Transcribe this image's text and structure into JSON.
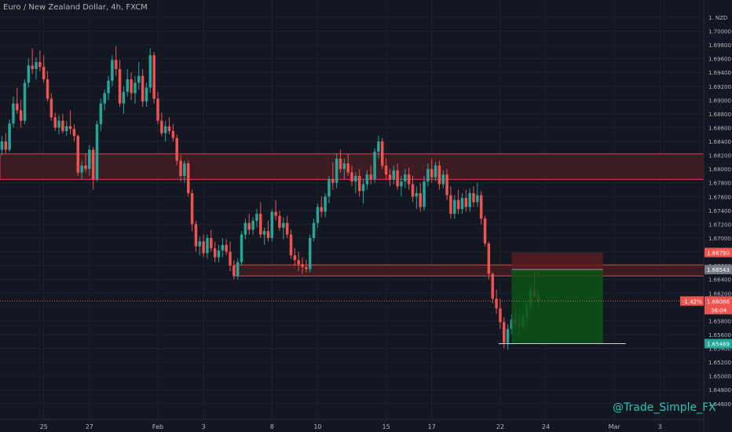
{
  "chart_title": "Euro / New Zealand Dollar, 4h, FXCM",
  "watermark": "@Trade_Simple_FX",
  "colors": {
    "background": "#131722",
    "grid": "#1e222d",
    "up": "#26a69a",
    "down": "#ef5350",
    "zone_fill": "#4a1f24",
    "zone_border": "#e0414b",
    "stop_zone": "#5a1c22",
    "target_zone": "#0d5418",
    "axis_text": "#b2b5be",
    "current_price": "#ef5350"
  },
  "chart_data": {
    "type": "candlestick",
    "title": "Euro / New Zealand Dollar, 4h, FXCM",
    "currency_label": "NZD",
    "ylim": [
      1.6437,
      1.7045
    ],
    "y_ticks": [
      "1.70200",
      "1.70000",
      "1.69800",
      "1.69600",
      "1.69400",
      "1.69200",
      "1.69000",
      "1.68800",
      "1.68600",
      "1.68400",
      "1.68200",
      "1.68000",
      "1.67800",
      "1.67600",
      "1.67400",
      "1.67200",
      "1.67000",
      "1.66800",
      "1.66600",
      "1.66400",
      "1.66200",
      "1.66000",
      "1.65800",
      "1.65600",
      "1.65400",
      "1.65200",
      "1.65000",
      "1.64800",
      "1.64600"
    ],
    "x_ticks": [
      {
        "label": "25",
        "i": 11
      },
      {
        "label": "27",
        "i": 23
      },
      {
        "label": "Feb",
        "i": 41
      },
      {
        "label": "3",
        "i": 53
      },
      {
        "label": "8",
        "i": 71
      },
      {
        "label": "10",
        "i": 83
      },
      {
        "label": "15",
        "i": 101
      },
      {
        "label": "17",
        "i": 113
      },
      {
        "label": "22",
        "i": 131
      },
      {
        "label": "24",
        "i": 143
      },
      {
        "label": "Mar",
        "i": 161
      },
      {
        "label": "3",
        "i": 173
      }
    ],
    "visible_candle_slots": 185,
    "resistance_zone": [
      1.6785,
      1.6822
    ],
    "support_zone": [
      1.6645,
      1.6661
    ],
    "trade": {
      "stop_top": 1.6679,
      "entry": 1.66543,
      "target": 1.65469,
      "start_i": 134,
      "end_i": 158
    },
    "price_labels": [
      {
        "text": "1.66790",
        "price": 1.6679,
        "color": "#ef5350"
      },
      {
        "text": "1.66543",
        "price": 1.66543,
        "color": "#787b86"
      },
      {
        "text": "1.65469",
        "price": 1.65469,
        "color": "#26a69a"
      }
    ],
    "current_price": {
      "price": 1.66086,
      "text": "1.66086",
      "change": "-1.42%",
      "timer": "38:04"
    },
    "candles": [
      [
        1.6828,
        1.6848,
        1.682,
        1.684
      ],
      [
        1.684,
        1.6852,
        1.6822,
        1.6828
      ],
      [
        1.6828,
        1.6872,
        1.6825,
        1.6866
      ],
      [
        1.6866,
        1.6905,
        1.686,
        1.6895
      ],
      [
        1.6895,
        1.6918,
        1.688,
        1.6885
      ],
      [
        1.6885,
        1.69,
        1.686,
        1.687
      ],
      [
        1.687,
        1.693,
        1.6865,
        1.6925
      ],
      [
        1.6925,
        1.696,
        1.6918,
        1.695
      ],
      [
        1.695,
        1.6975,
        1.6938,
        1.6945
      ],
      [
        1.6945,
        1.6962,
        1.693,
        1.6955
      ],
      [
        1.6955,
        1.6972,
        1.6942,
        1.6948
      ],
      [
        1.6948,
        1.6965,
        1.6925,
        1.693
      ],
      [
        1.693,
        1.6942,
        1.6898,
        1.6902
      ],
      [
        1.6902,
        1.691,
        1.687,
        1.6875
      ],
      [
        1.6875,
        1.6882,
        1.6855,
        1.686
      ],
      [
        1.686,
        1.6878,
        1.685,
        1.687
      ],
      [
        1.687,
        1.688,
        1.6852,
        1.6855
      ],
      [
        1.6855,
        1.687,
        1.6848,
        1.6862
      ],
      [
        1.6862,
        1.6885,
        1.685,
        1.6858
      ],
      [
        1.6858,
        1.6865,
        1.684,
        1.6848
      ],
      [
        1.6848,
        1.685,
        1.679,
        1.6795
      ],
      [
        1.6795,
        1.6812,
        1.6785,
        1.6805
      ],
      [
        1.6805,
        1.6822,
        1.6795,
        1.68
      ],
      [
        1.68,
        1.6835,
        1.679,
        1.6828
      ],
      [
        1.6828,
        1.6832,
        1.677,
        1.6785
      ],
      [
        1.6785,
        1.687,
        1.6782,
        1.6865
      ],
      [
        1.6865,
        1.6902,
        1.6855,
        1.6895
      ],
      [
        1.6895,
        1.6915,
        1.6885,
        1.691
      ],
      [
        1.691,
        1.6935,
        1.69,
        1.6928
      ],
      [
        1.6928,
        1.6965,
        1.692,
        1.6958
      ],
      [
        1.6958,
        1.6978,
        1.6935,
        1.6945
      ],
      [
        1.6945,
        1.6958,
        1.689,
        1.6895
      ],
      [
        1.6895,
        1.692,
        1.688,
        1.6912
      ],
      [
        1.6912,
        1.6945,
        1.6905,
        1.693
      ],
      [
        1.693,
        1.694,
        1.69,
        1.691
      ],
      [
        1.691,
        1.6935,
        1.6895,
        1.6925
      ],
      [
        1.6925,
        1.6955,
        1.6915,
        1.6935
      ],
      [
        1.6935,
        1.6945,
        1.689,
        1.6898
      ],
      [
        1.6898,
        1.6925,
        1.689,
        1.6918
      ],
      [
        1.6918,
        1.6975,
        1.691,
        1.6965
      ],
      [
        1.6965,
        1.697,
        1.6895,
        1.6902
      ],
      [
        1.6902,
        1.6912,
        1.6865,
        1.687
      ],
      [
        1.687,
        1.6882,
        1.6848,
        1.6852
      ],
      [
        1.6852,
        1.687,
        1.684,
        1.6862
      ],
      [
        1.6862,
        1.6875,
        1.685,
        1.6855
      ],
      [
        1.6855,
        1.6865,
        1.684,
        1.6845
      ],
      [
        1.6845,
        1.685,
        1.6805,
        1.6812
      ],
      [
        1.6812,
        1.682,
        1.6782,
        1.679
      ],
      [
        1.679,
        1.6812,
        1.678,
        1.6808
      ],
      [
        1.6808,
        1.6812,
        1.676,
        1.6765
      ],
      [
        1.6765,
        1.677,
        1.671,
        1.672
      ],
      [
        1.672,
        1.6725,
        1.668,
        1.6688
      ],
      [
        1.6688,
        1.6702,
        1.6675,
        1.6695
      ],
      [
        1.6695,
        1.6705,
        1.6672,
        1.6678
      ],
      [
        1.6678,
        1.6705,
        1.667,
        1.67
      ],
      [
        1.67,
        1.6712,
        1.668,
        1.6685
      ],
      [
        1.6685,
        1.6695,
        1.6665,
        1.6672
      ],
      [
        1.6672,
        1.669,
        1.6665,
        1.6682
      ],
      [
        1.6682,
        1.67,
        1.6672,
        1.669
      ],
      [
        1.669,
        1.6698,
        1.6675,
        1.668
      ],
      [
        1.668,
        1.6695,
        1.6652,
        1.666
      ],
      [
        1.666,
        1.6668,
        1.664,
        1.6645
      ],
      [
        1.6645,
        1.667,
        1.664,
        1.6665
      ],
      [
        1.6665,
        1.671,
        1.666,
        1.6705
      ],
      [
        1.6705,
        1.6728,
        1.6698,
        1.6722
      ],
      [
        1.6722,
        1.6735,
        1.6705,
        1.6712
      ],
      [
        1.6712,
        1.673,
        1.6705,
        1.6725
      ],
      [
        1.6725,
        1.6742,
        1.6715,
        1.6735
      ],
      [
        1.6735,
        1.6752,
        1.67,
        1.6705
      ],
      [
        1.6705,
        1.6715,
        1.669,
        1.671
      ],
      [
        1.671,
        1.6725,
        1.6695,
        1.67
      ],
      [
        1.67,
        1.6742,
        1.6695,
        1.6738
      ],
      [
        1.6738,
        1.6755,
        1.6725,
        1.6732
      ],
      [
        1.6732,
        1.674,
        1.671,
        1.6715
      ],
      [
        1.6715,
        1.673,
        1.6698,
        1.6722
      ],
      [
        1.6722,
        1.6732,
        1.67,
        1.6705
      ],
      [
        1.6705,
        1.6712,
        1.667,
        1.6675
      ],
      [
        1.6675,
        1.6685,
        1.666,
        1.6668
      ],
      [
        1.6668,
        1.668,
        1.6652,
        1.6662
      ],
      [
        1.6662,
        1.6672,
        1.6648,
        1.6658
      ],
      [
        1.6658,
        1.6668,
        1.665,
        1.6655
      ],
      [
        1.6655,
        1.6705,
        1.665,
        1.67
      ],
      [
        1.67,
        1.6728,
        1.6695,
        1.6722
      ],
      [
        1.6722,
        1.675,
        1.6715,
        1.6745
      ],
      [
        1.6745,
        1.676,
        1.673,
        1.6738
      ],
      [
        1.6738,
        1.6765,
        1.673,
        1.676
      ],
      [
        1.676,
        1.679,
        1.675,
        1.6785
      ],
      [
        1.6785,
        1.681,
        1.677,
        1.678
      ],
      [
        1.678,
        1.6822,
        1.6772,
        1.6815
      ],
      [
        1.6815,
        1.6828,
        1.6795,
        1.68
      ],
      [
        1.68,
        1.6815,
        1.6785,
        1.6808
      ],
      [
        1.6808,
        1.6822,
        1.679,
        1.6795
      ],
      [
        1.6795,
        1.6805,
        1.6775,
        1.6782
      ],
      [
        1.6782,
        1.6795,
        1.6765,
        1.679
      ],
      [
        1.679,
        1.68,
        1.676,
        1.6768
      ],
      [
        1.6768,
        1.6785,
        1.675,
        1.6778
      ],
      [
        1.6778,
        1.6798,
        1.677,
        1.6792
      ],
      [
        1.6792,
        1.6805,
        1.6778,
        1.6785
      ],
      [
        1.6785,
        1.683,
        1.678,
        1.6825
      ],
      [
        1.6825,
        1.6848,
        1.6815,
        1.684
      ],
      [
        1.684,
        1.6845,
        1.68,
        1.6805
      ],
      [
        1.6805,
        1.6815,
        1.6785,
        1.6792
      ],
      [
        1.6792,
        1.68,
        1.6775,
        1.6785
      ],
      [
        1.6785,
        1.6805,
        1.6778,
        1.6798
      ],
      [
        1.6798,
        1.6808,
        1.677,
        1.6775
      ],
      [
        1.6775,
        1.679,
        1.676,
        1.6782
      ],
      [
        1.6782,
        1.68,
        1.6772,
        1.6792
      ],
      [
        1.6792,
        1.6802,
        1.677,
        1.6778
      ],
      [
        1.6778,
        1.679,
        1.6752,
        1.676
      ],
      [
        1.676,
        1.6775,
        1.6742,
        1.6765
      ],
      [
        1.6765,
        1.678,
        1.6738,
        1.6745
      ],
      [
        1.6745,
        1.679,
        1.674,
        1.6782
      ],
      [
        1.6782,
        1.6808,
        1.6775,
        1.68
      ],
      [
        1.68,
        1.6815,
        1.678,
        1.6788
      ],
      [
        1.6788,
        1.681,
        1.6782,
        1.6805
      ],
      [
        1.6805,
        1.6812,
        1.677,
        1.6778
      ],
      [
        1.6778,
        1.6798,
        1.6772,
        1.6792
      ],
      [
        1.6792,
        1.68,
        1.6755,
        1.6762
      ],
      [
        1.6762,
        1.6775,
        1.6728,
        1.6735
      ],
      [
        1.6735,
        1.6762,
        1.6728,
        1.6755
      ],
      [
        1.6755,
        1.677,
        1.6735,
        1.6742
      ],
      [
        1.6742,
        1.6765,
        1.6735,
        1.6758
      ],
      [
        1.6758,
        1.677,
        1.6738,
        1.6745
      ],
      [
        1.6745,
        1.6772,
        1.6738,
        1.6765
      ],
      [
        1.6765,
        1.6775,
        1.6745,
        1.6752
      ],
      [
        1.6752,
        1.678,
        1.6745,
        1.6762
      ],
      [
        1.6762,
        1.6768,
        1.672,
        1.6728
      ],
      [
        1.6728,
        1.6732,
        1.6688,
        1.6692
      ],
      [
        1.6692,
        1.6695,
        1.664,
        1.6648
      ],
      [
        1.6648,
        1.665,
        1.6605,
        1.6612
      ],
      [
        1.6612,
        1.6625,
        1.659,
        1.6598
      ],
      [
        1.6598,
        1.6612,
        1.6568,
        1.6578
      ],
      [
        1.6578,
        1.6585,
        1.654,
        1.6548
      ],
      [
        1.6548,
        1.6575,
        1.6538,
        1.6568
      ],
      [
        1.6568,
        1.659,
        1.656,
        1.6582
      ],
      [
        1.6582,
        1.6598,
        1.6568,
        1.6575
      ],
      [
        1.6575,
        1.6585,
        1.6558,
        1.6572
      ],
      [
        1.6572,
        1.659,
        1.6568,
        1.6585
      ],
      [
        1.6585,
        1.6608,
        1.6575,
        1.6602
      ],
      [
        1.6602,
        1.663,
        1.6595,
        1.6625
      ],
      [
        1.6625,
        1.6652,
        1.6615,
        1.6615
      ],
      [
        1.6615,
        1.6625,
        1.66,
        1.6609
      ]
    ]
  }
}
